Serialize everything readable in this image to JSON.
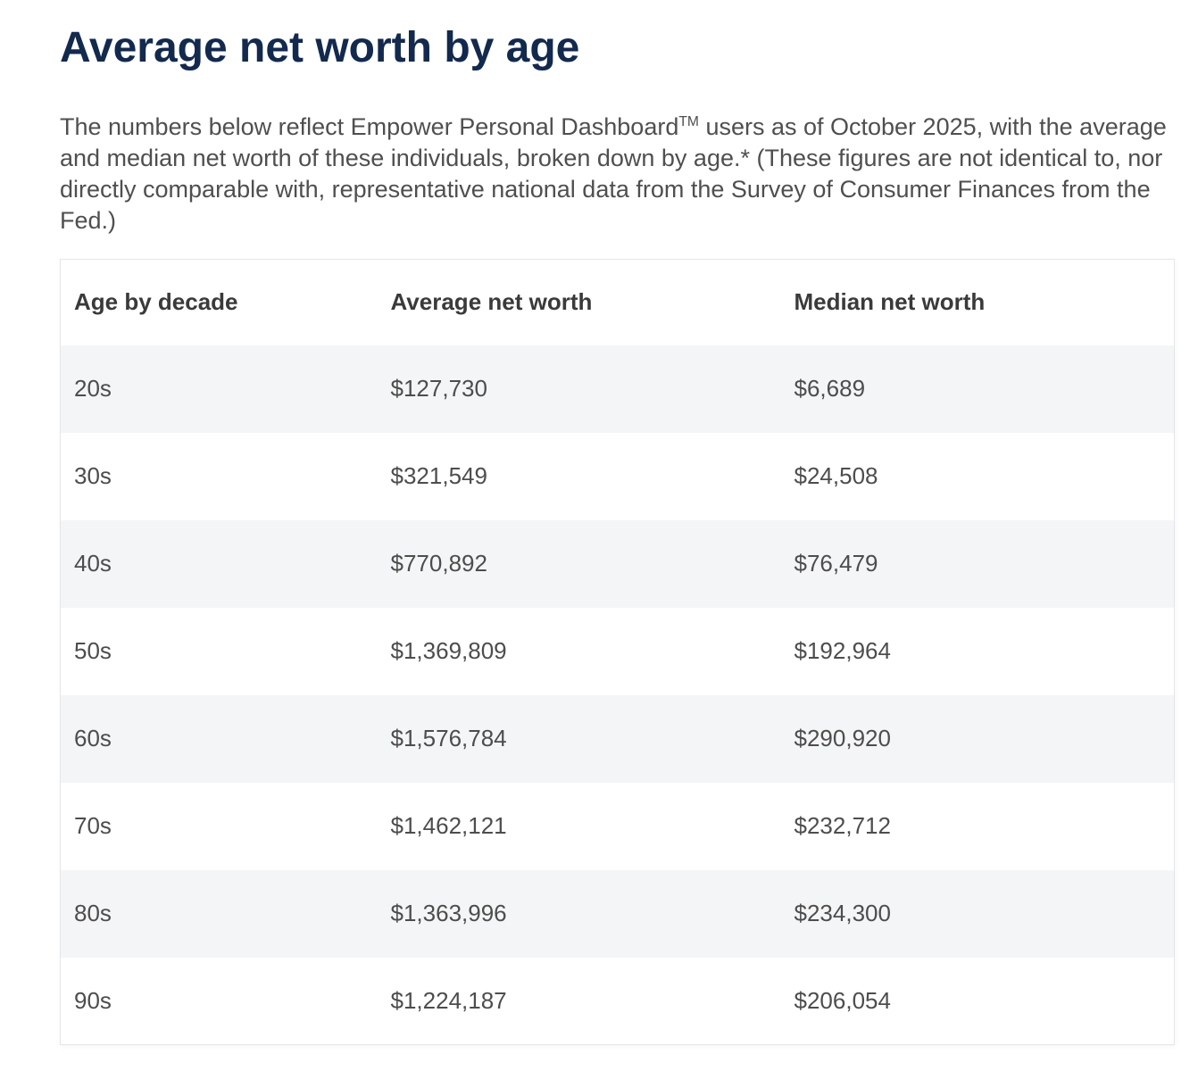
{
  "page": {
    "title": "Average net worth by age",
    "intro": {
      "before_tm": "The numbers below reflect Empower Personal Dashboard",
      "tm": "TM",
      "after_tm": " users as of October 2025, with the average and median net worth of these individuals, broken down by age.* (These figures are not identical to, nor directly comparable with, representative national data from the Survey of Consumer Finances from the Fed.)"
    }
  },
  "table": {
    "columns": [
      "Age by decade",
      "Average net worth",
      "Median net worth"
    ],
    "rows": [
      {
        "age": "20s",
        "average": "$127,730",
        "median": "$6,689"
      },
      {
        "age": "30s",
        "average": "$321,549",
        "median": "$24,508"
      },
      {
        "age": "40s",
        "average": "$770,892",
        "median": "$76,479"
      },
      {
        "age": "50s",
        "average": "$1,369,809",
        "median": "$192,964"
      },
      {
        "age": "60s",
        "average": "$1,576,784",
        "median": "$290,920"
      },
      {
        "age": "70s",
        "average": "$1,462,121",
        "median": "$232,712"
      },
      {
        "age": "80s",
        "average": "$1,363,996",
        "median": "$234,300"
      },
      {
        "age": "90s",
        "average": "$1,224,187",
        "median": "$206,054"
      }
    ]
  },
  "chart_data": {
    "type": "table",
    "title": "Average net worth by age",
    "categories": [
      "20s",
      "30s",
      "40s",
      "50s",
      "60s",
      "70s",
      "80s",
      "90s"
    ],
    "series": [
      {
        "name": "Average net worth",
        "values": [
          127730,
          321549,
          770892,
          1369809,
          1576784,
          1462121,
          1363996,
          1224187
        ]
      },
      {
        "name": "Median net worth",
        "values": [
          6689,
          24508,
          76479,
          192964,
          290920,
          232712,
          234300,
          206054
        ]
      }
    ]
  },
  "colors": {
    "title_navy": "#13294E",
    "body_text": "#4F4F4F",
    "header_text": "#3A3A3A",
    "row_stripe": "#F4F5F6",
    "table_border": "#E5E6E7",
    "page_background": "#FFFFFF"
  }
}
